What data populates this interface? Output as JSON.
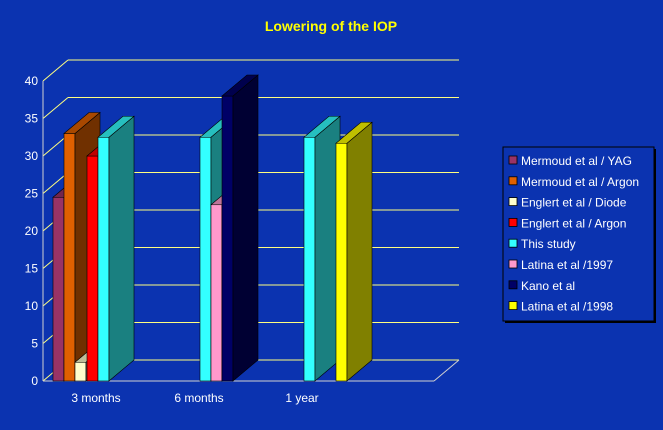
{
  "chart_data": {
    "type": "bar",
    "title": "Lowering of the IOP",
    "xlabel": "",
    "ylabel": "",
    "categories": [
      "3 months",
      "6 months",
      "1 year"
    ],
    "ylim": [
      0,
      40
    ],
    "yticks": [
      0,
      5,
      10,
      15,
      20,
      25,
      30,
      35,
      40
    ],
    "grid": true,
    "style": "3d",
    "legend_position": "right",
    "series": [
      {
        "name": "Mermoud et al / YAG",
        "color": "#993366",
        "values": [
          24.5,
          null,
          null
        ]
      },
      {
        "name": "Mermoud et al / Argon",
        "color": "#e06000",
        "values": [
          33,
          null,
          null
        ]
      },
      {
        "name": "Englert et al / Diode",
        "color": "#ffffcc",
        "values": [
          2.5,
          null,
          null
        ]
      },
      {
        "name": "Englert et al / Argon",
        "color": "#ff0000",
        "values": [
          30,
          null,
          null
        ]
      },
      {
        "name": "This study",
        "color": "#33ffff",
        "values": [
          32.5,
          32.5,
          32.5
        ]
      },
      {
        "name": "Latina et al /1997",
        "color": "#ff99cc",
        "values": [
          null,
          23.5,
          null
        ]
      },
      {
        "name": "Kano et al",
        "color": "#000066",
        "values": [
          null,
          38,
          null
        ]
      },
      {
        "name": "Latina et al /1998",
        "color": "#ffff00",
        "values": [
          null,
          null,
          31.7
        ]
      }
    ]
  }
}
